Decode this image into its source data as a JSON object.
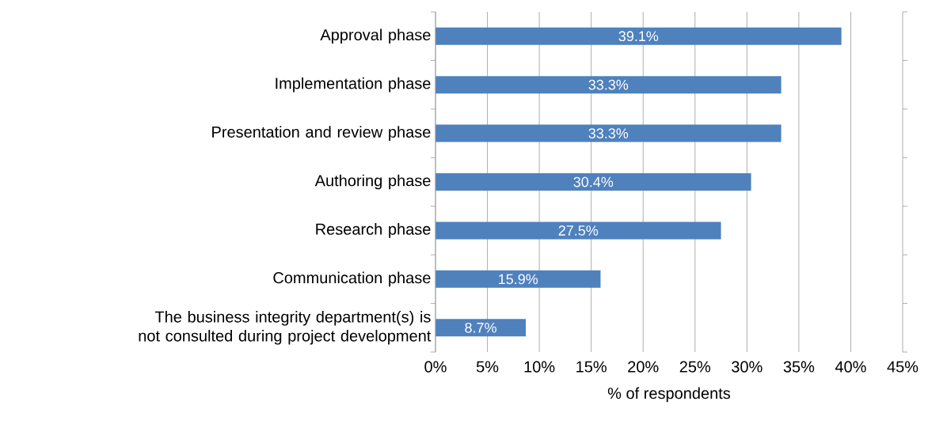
{
  "chart_data": {
    "type": "bar",
    "orientation": "horizontal",
    "xlabel": "% of respondents",
    "categories": [
      "Approval phase",
      "Implementation phase",
      "Presentation and review phase",
      "Authoring phase",
      "Research phase",
      "Communication phase",
      "The business integrity department(s) is not consulted during project development"
    ],
    "values": [
      39.1,
      33.3,
      33.3,
      30.4,
      27.5,
      15.9,
      8.7
    ],
    "value_labels": [
      "39.1%",
      "33.3%",
      "33.3%",
      "30.4%",
      "27.5%",
      "15.9%",
      "8.7%"
    ],
    "color": "#4f81bd",
    "xlim": [
      0,
      45
    ],
    "xticks": [
      {
        "value": 0,
        "label": "0%"
      },
      {
        "value": 5,
        "label": "5%"
      },
      {
        "value": 10,
        "label": "10%"
      },
      {
        "value": 15,
        "label": "15%"
      },
      {
        "value": 20,
        "label": "20%"
      },
      {
        "value": 25,
        "label": "25%"
      },
      {
        "value": 30,
        "label": "30%"
      },
      {
        "value": 35,
        "label": "35%"
      },
      {
        "value": 40,
        "label": "40%"
      },
      {
        "value": 45,
        "label": "45%"
      }
    ],
    "grid": "x"
  }
}
